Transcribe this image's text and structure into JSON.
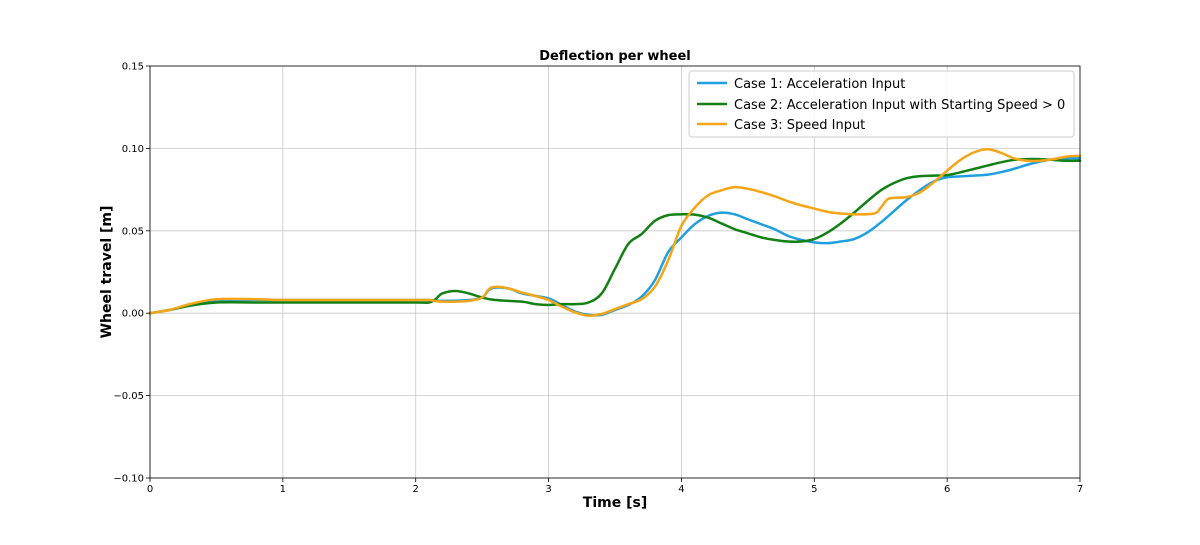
{
  "chart_data": {
    "type": "line",
    "title": "Deflection per wheel",
    "xlabel": "Time [s]",
    "ylabel": "Wheel travel [m]",
    "xlim": [
      0,
      7
    ],
    "ylim": [
      -0.1,
      0.15
    ],
    "xticks": [
      0,
      1,
      2,
      3,
      4,
      5,
      6,
      7
    ],
    "xtick_labels": [
      "0",
      "1",
      "2",
      "3",
      "4",
      "5",
      "6",
      "7"
    ],
    "yticks": [
      -0.1,
      -0.05,
      0.0,
      0.05,
      0.1,
      0.15
    ],
    "ytick_labels": [
      "−0.10",
      "−0.05",
      "0.00",
      "0.05",
      "0.10",
      "0.15"
    ],
    "grid": true,
    "legend_position": "top-right",
    "series": [
      {
        "name": "Case 1: Acceleration Input",
        "color": "#1f9fe0",
        "points": [
          [
            0,
            0
          ],
          [
            0.15,
            0.002
          ],
          [
            0.3,
            0.005
          ],
          [
            0.5,
            0.0075
          ],
          [
            0.8,
            0.008
          ],
          [
            1.0,
            0.008
          ],
          [
            1.5,
            0.008
          ],
          [
            2.0,
            0.008
          ],
          [
            2.1,
            0.008
          ],
          [
            2.2,
            0.0075
          ],
          [
            2.4,
            0.008
          ],
          [
            2.5,
            0.0095
          ],
          [
            2.55,
            0.014
          ],
          [
            2.6,
            0.0155
          ],
          [
            2.7,
            0.015
          ],
          [
            2.8,
            0.012
          ],
          [
            2.9,
            0.0105
          ],
          [
            3.0,
            0.009
          ],
          [
            3.1,
            0.005
          ],
          [
            3.2,
            0.001
          ],
          [
            3.3,
            -0.001
          ],
          [
            3.4,
            -0.001
          ],
          [
            3.5,
            0.002
          ],
          [
            3.6,
            0.005
          ],
          [
            3.7,
            0.01
          ],
          [
            3.8,
            0.02
          ],
          [
            3.9,
            0.037
          ],
          [
            4.0,
            0.046
          ],
          [
            4.1,
            0.054
          ],
          [
            4.2,
            0.059
          ],
          [
            4.3,
            0.061
          ],
          [
            4.4,
            0.06
          ],
          [
            4.5,
            0.057
          ],
          [
            4.6,
            0.054
          ],
          [
            4.7,
            0.051
          ],
          [
            4.8,
            0.047
          ],
          [
            4.9,
            0.0445
          ],
          [
            5.0,
            0.043
          ],
          [
            5.1,
            0.0425
          ],
          [
            5.2,
            0.0435
          ],
          [
            5.3,
            0.045
          ],
          [
            5.4,
            0.049
          ],
          [
            5.5,
            0.055
          ],
          [
            5.6,
            0.062
          ],
          [
            5.7,
            0.069
          ],
          [
            5.8,
            0.075
          ],
          [
            5.9,
            0.08
          ],
          [
            6.0,
            0.0825
          ],
          [
            6.1,
            0.083
          ],
          [
            6.2,
            0.0835
          ],
          [
            6.3,
            0.084
          ],
          [
            6.4,
            0.0855
          ],
          [
            6.5,
            0.0875
          ],
          [
            6.6,
            0.09
          ],
          [
            6.7,
            0.092
          ],
          [
            6.8,
            0.0935
          ],
          [
            6.9,
            0.094
          ],
          [
            7.0,
            0.094
          ]
        ]
      },
      {
        "name": "Case 2: Acceleration Input with Starting Speed > 0",
        "color": "#138013",
        "points": [
          [
            0,
            0
          ],
          [
            0.15,
            0.002
          ],
          [
            0.3,
            0.0045
          ],
          [
            0.5,
            0.0065
          ],
          [
            0.8,
            0.0065
          ],
          [
            1.0,
            0.0065
          ],
          [
            1.5,
            0.0065
          ],
          [
            2.0,
            0.0065
          ],
          [
            2.1,
            0.0065
          ],
          [
            2.15,
            0.0085
          ],
          [
            2.2,
            0.012
          ],
          [
            2.3,
            0.0135
          ],
          [
            2.4,
            0.012
          ],
          [
            2.5,
            0.0095
          ],
          [
            2.6,
            0.008
          ],
          [
            2.8,
            0.007
          ],
          [
            2.9,
            0.0055
          ],
          [
            3.0,
            0.005
          ],
          [
            3.1,
            0.0055
          ],
          [
            3.2,
            0.0055
          ],
          [
            3.3,
            0.0065
          ],
          [
            3.4,
            0.012
          ],
          [
            3.5,
            0.027
          ],
          [
            3.6,
            0.042
          ],
          [
            3.7,
            0.048
          ],
          [
            3.8,
            0.056
          ],
          [
            3.9,
            0.0595
          ],
          [
            4.0,
            0.06
          ],
          [
            4.1,
            0.0598
          ],
          [
            4.2,
            0.058
          ],
          [
            4.3,
            0.0545
          ],
          [
            4.4,
            0.051
          ],
          [
            4.5,
            0.0485
          ],
          [
            4.6,
            0.046
          ],
          [
            4.7,
            0.0445
          ],
          [
            4.8,
            0.0435
          ],
          [
            4.9,
            0.0435
          ],
          [
            5.0,
            0.045
          ],
          [
            5.1,
            0.049
          ],
          [
            5.2,
            0.0545
          ],
          [
            5.3,
            0.061
          ],
          [
            5.4,
            0.068
          ],
          [
            5.5,
            0.0745
          ],
          [
            5.6,
            0.079
          ],
          [
            5.7,
            0.082
          ],
          [
            5.8,
            0.0832
          ],
          [
            5.9,
            0.0835
          ],
          [
            6.0,
            0.0838
          ],
          [
            6.1,
            0.0855
          ],
          [
            6.2,
            0.0875
          ],
          [
            6.3,
            0.0895
          ],
          [
            6.4,
            0.0915
          ],
          [
            6.5,
            0.093
          ],
          [
            6.6,
            0.0935
          ],
          [
            6.7,
            0.0935
          ],
          [
            6.8,
            0.093
          ],
          [
            6.9,
            0.0925
          ],
          [
            7.0,
            0.0925
          ]
        ]
      },
      {
        "name": "Case 3: Speed Input",
        "color": "#f5a516",
        "points": [
          [
            0,
            0
          ],
          [
            0.15,
            0.002
          ],
          [
            0.3,
            0.0055
          ],
          [
            0.5,
            0.0085
          ],
          [
            0.8,
            0.0085
          ],
          [
            1.0,
            0.008
          ],
          [
            1.5,
            0.008
          ],
          [
            2.0,
            0.008
          ],
          [
            2.1,
            0.008
          ],
          [
            2.2,
            0.007
          ],
          [
            2.4,
            0.0075
          ],
          [
            2.5,
            0.0095
          ],
          [
            2.55,
            0.0145
          ],
          [
            2.6,
            0.016
          ],
          [
            2.7,
            0.015
          ],
          [
            2.8,
            0.0125
          ],
          [
            2.9,
            0.0105
          ],
          [
            3.0,
            0.008
          ],
          [
            3.1,
            0.004
          ],
          [
            3.2,
            0.0005
          ],
          [
            3.3,
            -0.0015
          ],
          [
            3.4,
            -0.0005
          ],
          [
            3.5,
            0.0025
          ],
          [
            3.6,
            0.0055
          ],
          [
            3.7,
            0.0085
          ],
          [
            3.8,
            0.016
          ],
          [
            3.9,
            0.032
          ],
          [
            4.0,
            0.053
          ],
          [
            4.1,
            0.064
          ],
          [
            4.2,
            0.0715
          ],
          [
            4.3,
            0.0745
          ],
          [
            4.4,
            0.0765
          ],
          [
            4.5,
            0.0755
          ],
          [
            4.6,
            0.0735
          ],
          [
            4.7,
            0.071
          ],
          [
            4.8,
            0.068
          ],
          [
            4.9,
            0.0655
          ],
          [
            5.0,
            0.0635
          ],
          [
            5.1,
            0.0615
          ],
          [
            5.2,
            0.0605
          ],
          [
            5.3,
            0.06
          ],
          [
            5.45,
            0.0605
          ],
          [
            5.5,
            0.064
          ],
          [
            5.55,
            0.069
          ],
          [
            5.6,
            0.07
          ],
          [
            5.7,
            0.0705
          ],
          [
            5.8,
            0.0735
          ],
          [
            5.9,
            0.0795
          ],
          [
            6.0,
            0.0865
          ],
          [
            6.1,
            0.093
          ],
          [
            6.2,
            0.0975
          ],
          [
            6.3,
            0.0995
          ],
          [
            6.4,
            0.0975
          ],
          [
            6.5,
            0.094
          ],
          [
            6.6,
            0.0925
          ],
          [
            6.7,
            0.0925
          ],
          [
            6.8,
            0.0935
          ],
          [
            6.9,
            0.095
          ],
          [
            7.0,
            0.0955
          ]
        ]
      }
    ]
  }
}
